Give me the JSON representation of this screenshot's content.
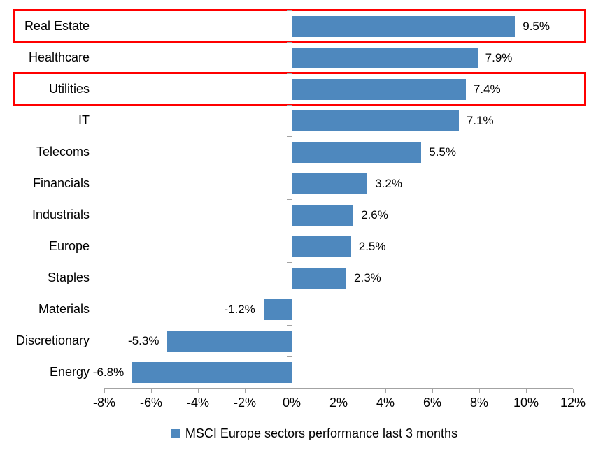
{
  "chart_data": {
    "type": "bar",
    "orientation": "horizontal",
    "title": "",
    "categories": [
      "Real Estate",
      "Healthcare",
      "Utilities",
      "IT",
      "Telecoms",
      "Financials",
      "Industrials",
      "Europe",
      "Staples",
      "Materials",
      "Discretionary",
      "Energy"
    ],
    "values": [
      9.5,
      7.9,
      7.4,
      7.1,
      5.5,
      3.2,
      2.6,
      2.5,
      2.3,
      -1.2,
      -5.3,
      -6.8
    ],
    "value_labels": [
      "9.5%",
      "7.9%",
      "7.4%",
      "7.1%",
      "5.5%",
      "3.2%",
      "2.6%",
      "2.5%",
      "2.3%",
      "-1.2%",
      "-5.3%",
      "-6.8%"
    ],
    "x_ticks": [
      "-8%",
      "-6%",
      "-4%",
      "-2%",
      "0%",
      "2%",
      "4%",
      "6%",
      "8%",
      "10%",
      "12%"
    ],
    "x_tick_values": [
      -8,
      -6,
      -4,
      -2,
      0,
      2,
      4,
      6,
      8,
      10,
      12
    ],
    "xlim": [
      -8,
      12
    ],
    "xlabel": "",
    "ylabel": "",
    "grid": false,
    "legend": "MSCI Europe sectors performance last 3 months",
    "legend_position": "bottom",
    "bar_color": "#4E88BE",
    "highlight_color": "#FF0000",
    "highlighted_categories": [
      "Real Estate",
      "Utilities"
    ]
  }
}
